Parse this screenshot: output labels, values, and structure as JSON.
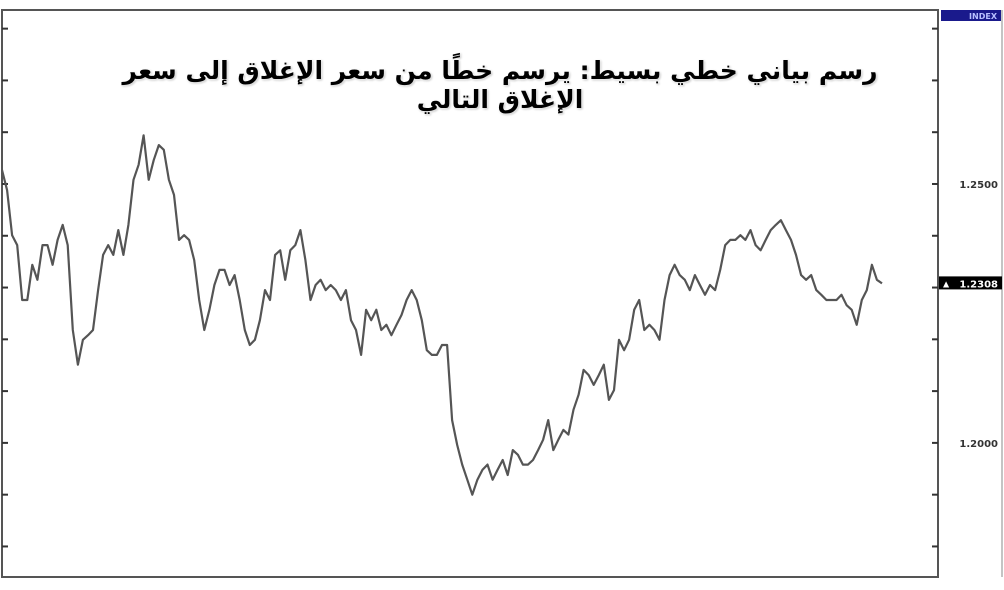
{
  "title": "رسم بياني خطي بسيط: يرسم خطًا من سعر الإغلاق إلى سعر الإغلاق التالي",
  "index_badge": "INDEX",
  "current_price_label": "1.2308",
  "colors": {
    "line": "#555555",
    "badge": "#1a1a8c",
    "current_bg": "#000000"
  },
  "chart_data": {
    "type": "line",
    "title": "رسم بياني خطي بسيط: يرسم خطًا من سعر الإغلاق إلى سعر الإغلاق التالي",
    "xlabel": "",
    "ylabel": "",
    "ylim": [
      1.1741,
      1.2836
    ],
    "y_ticks": [
      1.28,
      1.27,
      1.26,
      1.25,
      1.24,
      1.23,
      1.22,
      1.21,
      1.2,
      1.19,
      1.18
    ],
    "y_tick_labels": [
      {
        "value": 1.25,
        "label": "1.2500"
      },
      {
        "value": 1.2,
        "label": "1.2000"
      }
    ],
    "current_value": 1.2308,
    "grid": false,
    "y_axis_side": "right",
    "values": [
      1.2527,
      1.2488,
      1.2401,
      1.2382,
      1.2276,
      1.2276,
      1.2344,
      1.2315,
      1.2382,
      1.2382,
      1.2344,
      1.2392,
      1.2421,
      1.2382,
      1.2218,
      1.2151,
      1.2199,
      1.2208,
      1.2218,
      1.2295,
      1.2363,
      1.2382,
      1.2363,
      1.2411,
      1.2363,
      1.2421,
      1.2508,
      1.2537,
      1.2594,
      1.2508,
      1.2546,
      1.2575,
      1.2566,
      1.2508,
      1.2479,
      1.2392,
      1.2401,
      1.2392,
      1.2353,
      1.2276,
      1.2218,
      1.2257,
      1.2305,
      1.2334,
      1.2334,
      1.2305,
      1.2324,
      1.2276,
      1.2218,
      1.2189,
      1.2199,
      1.2237,
      1.2295,
      1.2276,
      1.2363,
      1.2372,
      1.2315,
      1.2372,
      1.2382,
      1.2411,
      1.2353,
      1.2276,
      1.2305,
      1.2315,
      1.2295,
      1.2305,
      1.2295,
      1.2276,
      1.2295,
      1.2237,
      1.2218,
      1.217,
      1.2257,
      1.2237,
      1.2257,
      1.2218,
      1.2228,
      1.2208,
      1.2228,
      1.2247,
      1.2276,
      1.2295,
      1.2276,
      1.2237,
      1.2179,
      1.217,
      1.217,
      1.2189,
      1.2189,
      1.2044,
      1.1996,
      1.1958,
      1.1929,
      1.19,
      1.1929,
      1.1948,
      1.1958,
      1.1929,
      1.1948,
      1.1967,
      1.1938,
      1.1986,
      1.1977,
      1.1958,
      1.1958,
      1.1967,
      1.1986,
      1.2006,
      1.2044,
      1.1986,
      1.2006,
      1.2025,
      1.2016,
      1.2064,
      1.2093,
      1.2141,
      1.2131,
      1.2112,
      1.2131,
      1.2151,
      1.2083,
      1.2102,
      1.2199,
      1.2179,
      1.2199,
      1.2257,
      1.2276,
      1.2218,
      1.2228,
      1.2218,
      1.2199,
      1.2276,
      1.2324,
      1.2344,
      1.2324,
      1.2315,
      1.2295,
      1.2324,
      1.2305,
      1.2286,
      1.2305,
      1.2295,
      1.2334,
      1.2382,
      1.2392,
      1.2392,
      1.2401,
      1.2392,
      1.2411,
      1.2382,
      1.2372,
      1.2392,
      1.2411,
      1.2421,
      1.243,
      1.2411,
      1.2392,
      1.2363,
      1.2324,
      1.2315,
      1.2324,
      1.2295,
      1.2286,
      1.2276,
      1.2276,
      1.2276,
      1.2286,
      1.2266,
      1.2257,
      1.2228,
      1.2276,
      1.2295,
      1.2344,
      1.2315,
      1.2308
    ]
  }
}
